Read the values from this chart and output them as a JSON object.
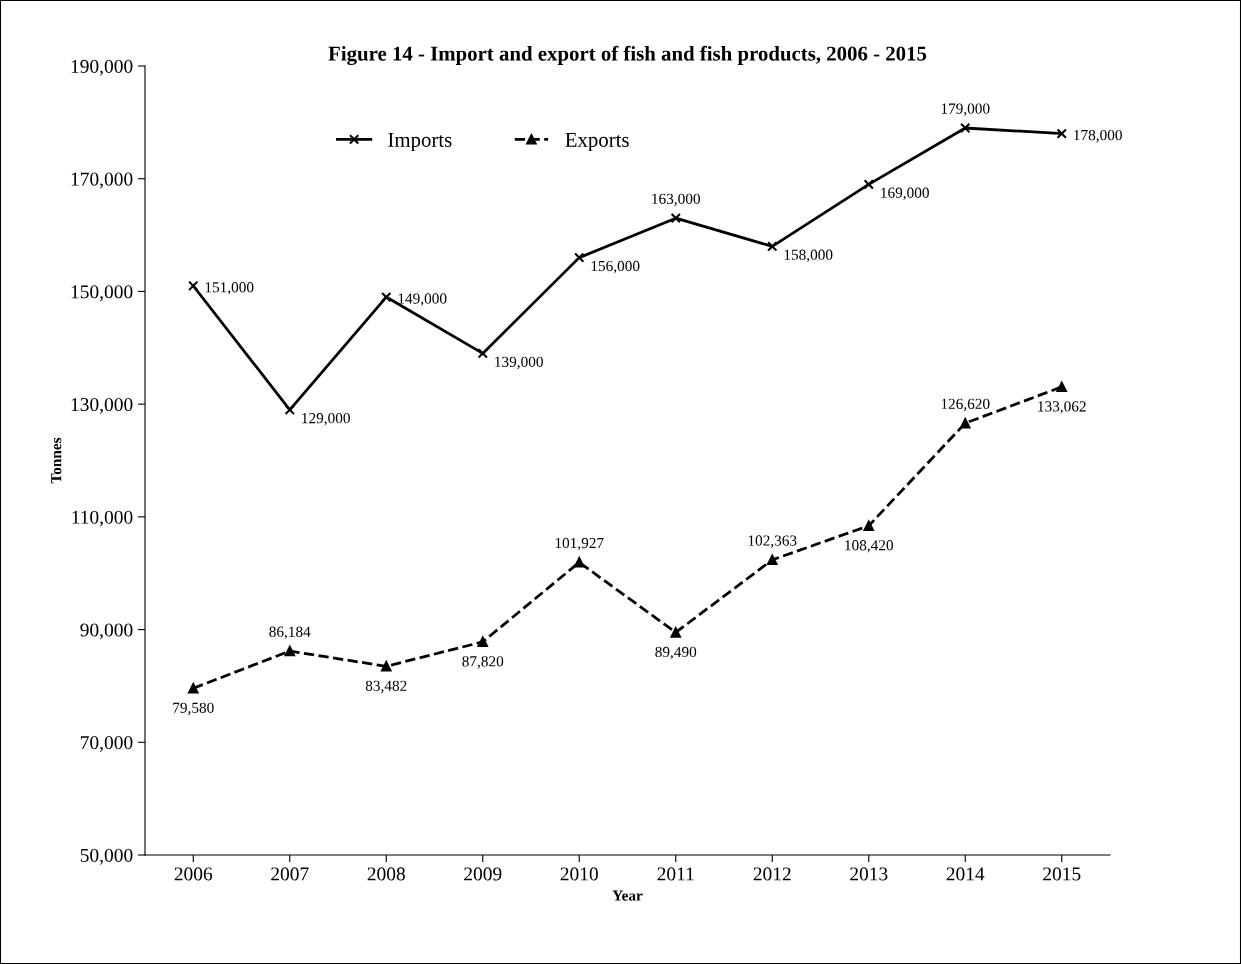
{
  "chart_data": {
    "type": "line",
    "title": "Figure 14 - Import and export of fish and fish products, 2006 - 2015",
    "xlabel": "Year",
    "ylabel": "Tonnes",
    "categories": [
      "2006",
      "2007",
      "2008",
      "2009",
      "2010",
      "2011",
      "2012",
      "2013",
      "2014",
      "2015"
    ],
    "series": [
      {
        "name": "Imports",
        "color": "#000000",
        "marker": "cross",
        "line_style": "solid",
        "values": [
          151000,
          129000,
          149000,
          139000,
          156000,
          163000,
          158000,
          169000,
          179000,
          178000
        ],
        "value_labels": [
          "151,000",
          "129,000",
          "149,000",
          "139,000",
          "156,000",
          "163,000",
          "158,000",
          "169,000",
          "179,000",
          "178,000"
        ]
      },
      {
        "name": "Exports",
        "color": "#000000",
        "marker": "triangle",
        "line_style": "dashed",
        "values": [
          79580,
          86184,
          83482,
          87820,
          101927,
          89490,
          102363,
          108420,
          126620,
          133062
        ],
        "value_labels": [
          "79,580",
          "86,184",
          "83,482",
          "87,820",
          "101,927",
          "89,490",
          "102,363",
          "108,420",
          "126,620",
          "133,062"
        ]
      }
    ],
    "ylim": [
      50000,
      190000
    ],
    "yticks": [
      {
        "value": 50000,
        "label": "50,000"
      },
      {
        "value": 70000,
        "label": "70,000"
      },
      {
        "value": 90000,
        "label": "90,000"
      },
      {
        "value": 110000,
        "label": "110,000"
      },
      {
        "value": 130000,
        "label": "130,000"
      },
      {
        "value": 150000,
        "label": "150,000"
      },
      {
        "value": 170000,
        "label": "170,000"
      },
      {
        "value": 190000,
        "label": "190,000"
      }
    ],
    "legend": "top left",
    "grid": false
  }
}
